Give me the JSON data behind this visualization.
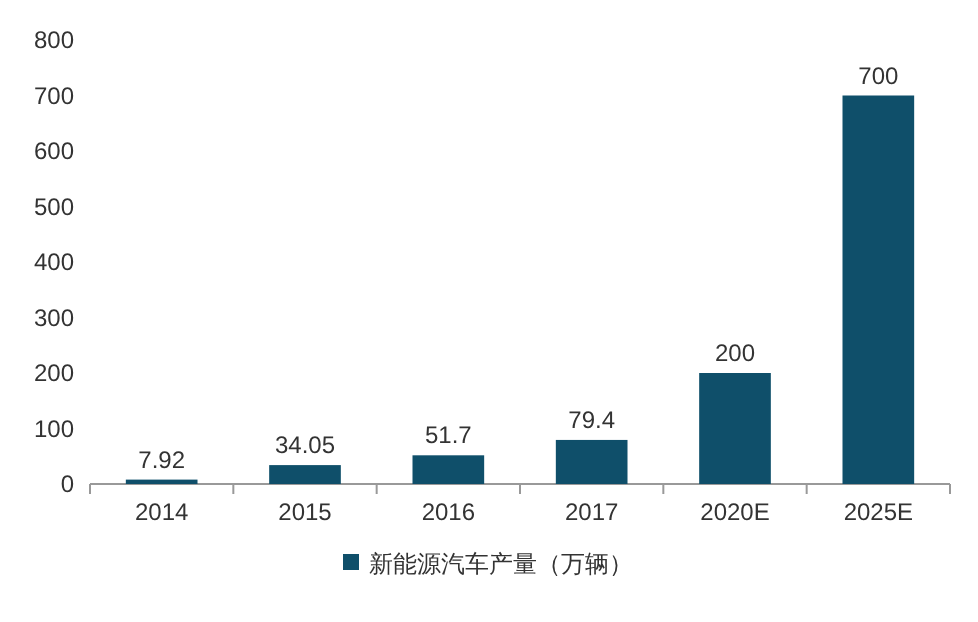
{
  "chart_data": {
    "type": "bar",
    "categories": [
      "2014",
      "2015",
      "2016",
      "2017",
      "2020E",
      "2025E"
    ],
    "series": [
      {
        "name": "新能源汽车产量（万辆）",
        "color": "#0f4f6a",
        "values": [
          7.92,
          34.05,
          51.7,
          79.4,
          200,
          700
        ]
      }
    ],
    "ylim": [
      0,
      800
    ],
    "yticks": [
      0,
      100,
      200,
      300,
      400,
      500,
      600,
      700,
      800
    ],
    "data_labels": true,
    "legend": "bottom"
  }
}
